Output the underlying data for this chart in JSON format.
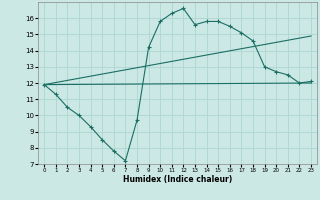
{
  "xlabel": "Humidex (Indice chaleur)",
  "bg_color": "#cce8e5",
  "grid_color": "#b0d8d4",
  "line_color": "#1a6e63",
  "xlim": [
    -0.5,
    23.5
  ],
  "ylim": [
    7,
    17
  ],
  "yticks": [
    7,
    8,
    9,
    10,
    11,
    12,
    13,
    14,
    15,
    16
  ],
  "xticks": [
    0,
    1,
    2,
    3,
    4,
    5,
    6,
    7,
    8,
    9,
    10,
    11,
    12,
    13,
    14,
    15,
    16,
    17,
    18,
    19,
    20,
    21,
    22,
    23
  ],
  "wavy_x": [
    0,
    1,
    2,
    3,
    4,
    5,
    6,
    7,
    8,
    9,
    10,
    11,
    12,
    13,
    14,
    15,
    16,
    17,
    18,
    19,
    20,
    21,
    22,
    23
  ],
  "wavy_y": [
    11.9,
    11.3,
    10.5,
    10.0,
    9.3,
    8.5,
    7.8,
    7.2,
    9.7,
    14.2,
    15.8,
    16.3,
    16.6,
    15.6,
    15.8,
    15.8,
    15.5,
    15.1,
    14.6,
    13.0,
    12.7,
    12.5,
    12.0,
    12.1
  ],
  "line2_x": [
    0,
    23
  ],
  "line2_y": [
    11.9,
    12.0
  ],
  "line3_x": [
    0,
    23
  ],
  "line3_y": [
    11.9,
    14.9
  ]
}
